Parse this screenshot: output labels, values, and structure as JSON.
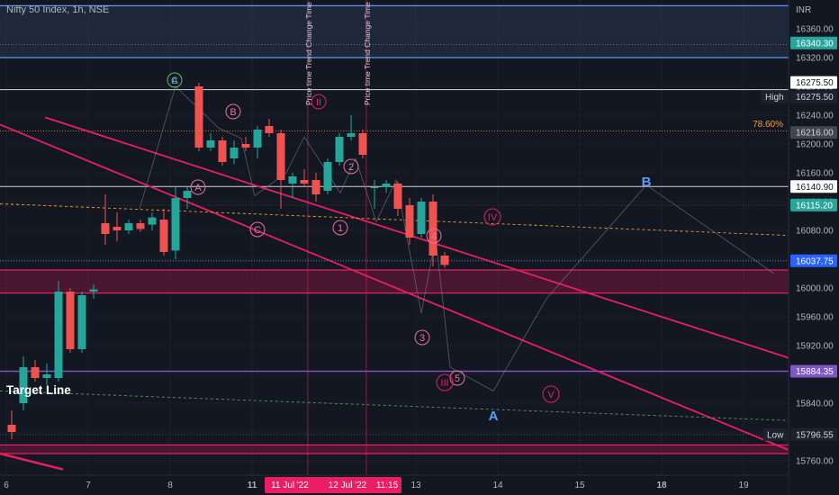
{
  "header": {
    "title": "Nifty 50 Index, 1h, NSE",
    "currency": "INR"
  },
  "vertical_labels": {
    "price_time_1": "Price time Trend Change Time",
    "price_time_2": "Price time Trend Change Time"
  },
  "labels": {
    "target_line": "Target Line",
    "high": "High",
    "low": "Low",
    "fib": "78.60%"
  },
  "colors": {
    "background": "#131722",
    "bull": "#26a69a",
    "bear": "#ef5350",
    "pink": "#e91e63",
    "blue": "#5b9cf6",
    "purple": "#7e57c2",
    "orange": "#f0a030",
    "green": "#66bb6a"
  },
  "chart_data": {
    "type": "candlestick",
    "ylim": [
      15740,
      16400
    ],
    "yticks": [
      16360,
      16320,
      16280,
      16240,
      16200,
      16160,
      16120,
      16080,
      16040,
      16000,
      15960,
      15920,
      15880,
      15840,
      15800,
      15760
    ],
    "ytick_labels": [
      "16360.00",
      "16320.00",
      "16280.00",
      "16240.00",
      "16200.00",
      "16160.00",
      "16120.00",
      "16080.00",
      "16040.00",
      "16000.00",
      "15960.00",
      "15920.00",
      "15880.00",
      "15840.00",
      "15800.00",
      "15760.00"
    ],
    "x_ticks": [
      {
        "label": "6",
        "bar": 0
      },
      {
        "label": "7",
        "bar": 7
      },
      {
        "label": "8",
        "bar": 14
      },
      {
        "label": "11",
        "bar": 21
      },
      {
        "label": "13",
        "bar": 35
      },
      {
        "label": "14",
        "bar": 42
      },
      {
        "label": "15",
        "bar": 49
      },
      {
        "label": "18",
        "bar": 56
      },
      {
        "label": "19",
        "bar": 63
      }
    ],
    "x_highlights": [
      {
        "label": "11 Jul '22",
        "bar": 25
      },
      {
        "label": "12 Jul '22",
        "bar": 29
      },
      {
        "label": "11:15",
        "bar": 32.6
      }
    ],
    "price_tags": [
      {
        "value": 16340.3,
        "label": "16340.30",
        "bg": "#26a69a",
        "fg": "#ffffff"
      },
      {
        "value": 16275.5,
        "label": "16275.50",
        "bg": "#ffffff",
        "fg": "#131722"
      },
      {
        "value": 16216.0,
        "label": "16216.00",
        "bg": "#434651",
        "fg": "#d1d4dc"
      },
      {
        "value": 16140.9,
        "label": "16140.90",
        "bg": "#ffffff",
        "fg": "#131722"
      },
      {
        "value": 16115.2,
        "label": "16115.20",
        "bg": "#26a69a",
        "fg": "#ffffff"
      },
      {
        "value": 16037.75,
        "label": "16037.75",
        "bg": "#2962ff",
        "fg": "#ffffff"
      },
      {
        "value": 15884.35,
        "label": "15884.35",
        "bg": "#7e57c2",
        "fg": "#ffffff"
      },
      {
        "value": 15796.55,
        "label": "15796.55",
        "bg": "#1e222d",
        "fg": "#d1d4dc"
      },
      {
        "value": 16275.5,
        "label": "16275.50",
        "bg": "#1e222d",
        "fg": "#d1d4dc",
        "offset": 16
      }
    ],
    "candles": [
      {
        "o": 15810,
        "h": 15830,
        "l": 15790,
        "c": 15800
      },
      {
        "o": 15840,
        "h": 15905,
        "l": 15830,
        "c": 15890
      },
      {
        "o": 15890,
        "h": 15900,
        "l": 15870,
        "c": 15875
      },
      {
        "o": 15875,
        "h": 15895,
        "l": 15865,
        "c": 15880
      },
      {
        "o": 15875,
        "h": 16010,
        "l": 15870,
        "c": 15995
      },
      {
        "o": 15995,
        "h": 16000,
        "l": 15910,
        "c": 15915
      },
      {
        "o": 15915,
        "h": 15995,
        "l": 15910,
        "c": 15990
      },
      {
        "o": 15995,
        "h": 16005,
        "l": 15985,
        "c": 15998
      },
      {
        "o": 16090,
        "h": 16130,
        "l": 16060,
        "c": 16075
      },
      {
        "o": 16085,
        "h": 16105,
        "l": 16065,
        "c": 16080
      },
      {
        "o": 16080,
        "h": 16095,
        "l": 16075,
        "c": 16090
      },
      {
        "o": 16090,
        "h": 16095,
        "l": 16078,
        "c": 16082
      },
      {
        "o": 16088,
        "h": 16105,
        "l": 16080,
        "c": 16098
      },
      {
        "o": 16095,
        "h": 16110,
        "l": 16045,
        "c": 16050
      },
      {
        "o": 16052,
        "h": 16140,
        "l": 16040,
        "c": 16125
      },
      {
        "o": 16125,
        "h": 16140,
        "l": 16110,
        "c": 16135
      },
      {
        "o": 16280,
        "h": 16285,
        "l": 16190,
        "c": 16195
      },
      {
        "o": 16195,
        "h": 16215,
        "l": 16190,
        "c": 16205
      },
      {
        "o": 16205,
        "h": 16210,
        "l": 16170,
        "c": 16175
      },
      {
        "o": 16180,
        "h": 16205,
        "l": 16172,
        "c": 16195
      },
      {
        "o": 16200,
        "h": 16210,
        "l": 16190,
        "c": 16195
      },
      {
        "o": 16195,
        "h": 16225,
        "l": 16180,
        "c": 16220
      },
      {
        "o": 16225,
        "h": 16235,
        "l": 16210,
        "c": 16215
      },
      {
        "o": 16215,
        "h": 16220,
        "l": 16110,
        "c": 16150
      },
      {
        "o": 16145,
        "h": 16160,
        "l": 16125,
        "c": 16155
      },
      {
        "o": 16150,
        "h": 16165,
        "l": 16140,
        "c": 16145
      },
      {
        "o": 16150,
        "h": 16160,
        "l": 16120,
        "c": 16130
      },
      {
        "o": 16135,
        "h": 16180,
        "l": 16130,
        "c": 16175
      },
      {
        "o": 16175,
        "h": 16215,
        "l": 16170,
        "c": 16210
      },
      {
        "o": 16210,
        "h": 16240,
        "l": 16205,
        "c": 16215
      },
      {
        "o": 16215,
        "h": 16220,
        "l": 16180,
        "c": 16185
      },
      {
        "o": 16140,
        "h": 16150,
        "l": 16110,
        "c": 16140
      },
      {
        "o": 16140,
        "h": 16150,
        "l": 16132,
        "c": 16145
      },
      {
        "o": 16145,
        "h": 16148,
        "l": 16100,
        "c": 16110
      },
      {
        "o": 16115,
        "h": 16125,
        "l": 16060,
        "c": 16070
      },
      {
        "o": 16075,
        "h": 16125,
        "l": 16070,
        "c": 16120
      },
      {
        "o": 16120,
        "h": 16130,
        "l": 16030,
        "c": 16045
      },
      {
        "o": 16045,
        "h": 16050,
        "l": 16028,
        "c": 16032
      }
    ]
  }
}
